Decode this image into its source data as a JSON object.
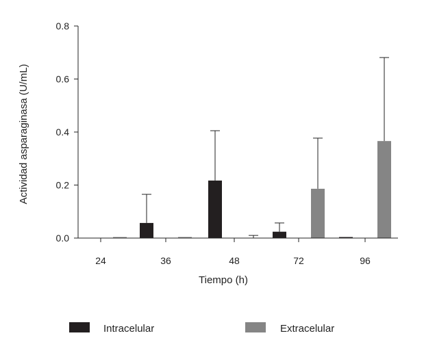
{
  "chart_data": {
    "type": "bar",
    "xlabel": "Tiempo (h)",
    "ylabel": "Actividad asparaginasa  (U/mL)",
    "ylim": [
      0,
      0.8
    ],
    "yticks": [
      "0.0",
      "0.2",
      "0.4",
      "0.6",
      "0.8"
    ],
    "categories": [
      "24",
      "36",
      "48",
      "72",
      "96"
    ],
    "series": [
      {
        "name": "Intracelular",
        "color": "#231f20",
        "values": [
          0.0,
          0.057,
          0.217,
          0.024,
          0.003
        ],
        "error_upper": [
          null,
          0.165,
          0.405,
          0.057,
          null
        ]
      },
      {
        "name": "Extracelular",
        "color": "#858585",
        "values": [
          0.003,
          0.004,
          0.0,
          0.186,
          0.366
        ],
        "error_upper": [
          null,
          null,
          0.01,
          0.377,
          0.681
        ]
      }
    ],
    "legend_position": "bottom",
    "grid": false
  }
}
